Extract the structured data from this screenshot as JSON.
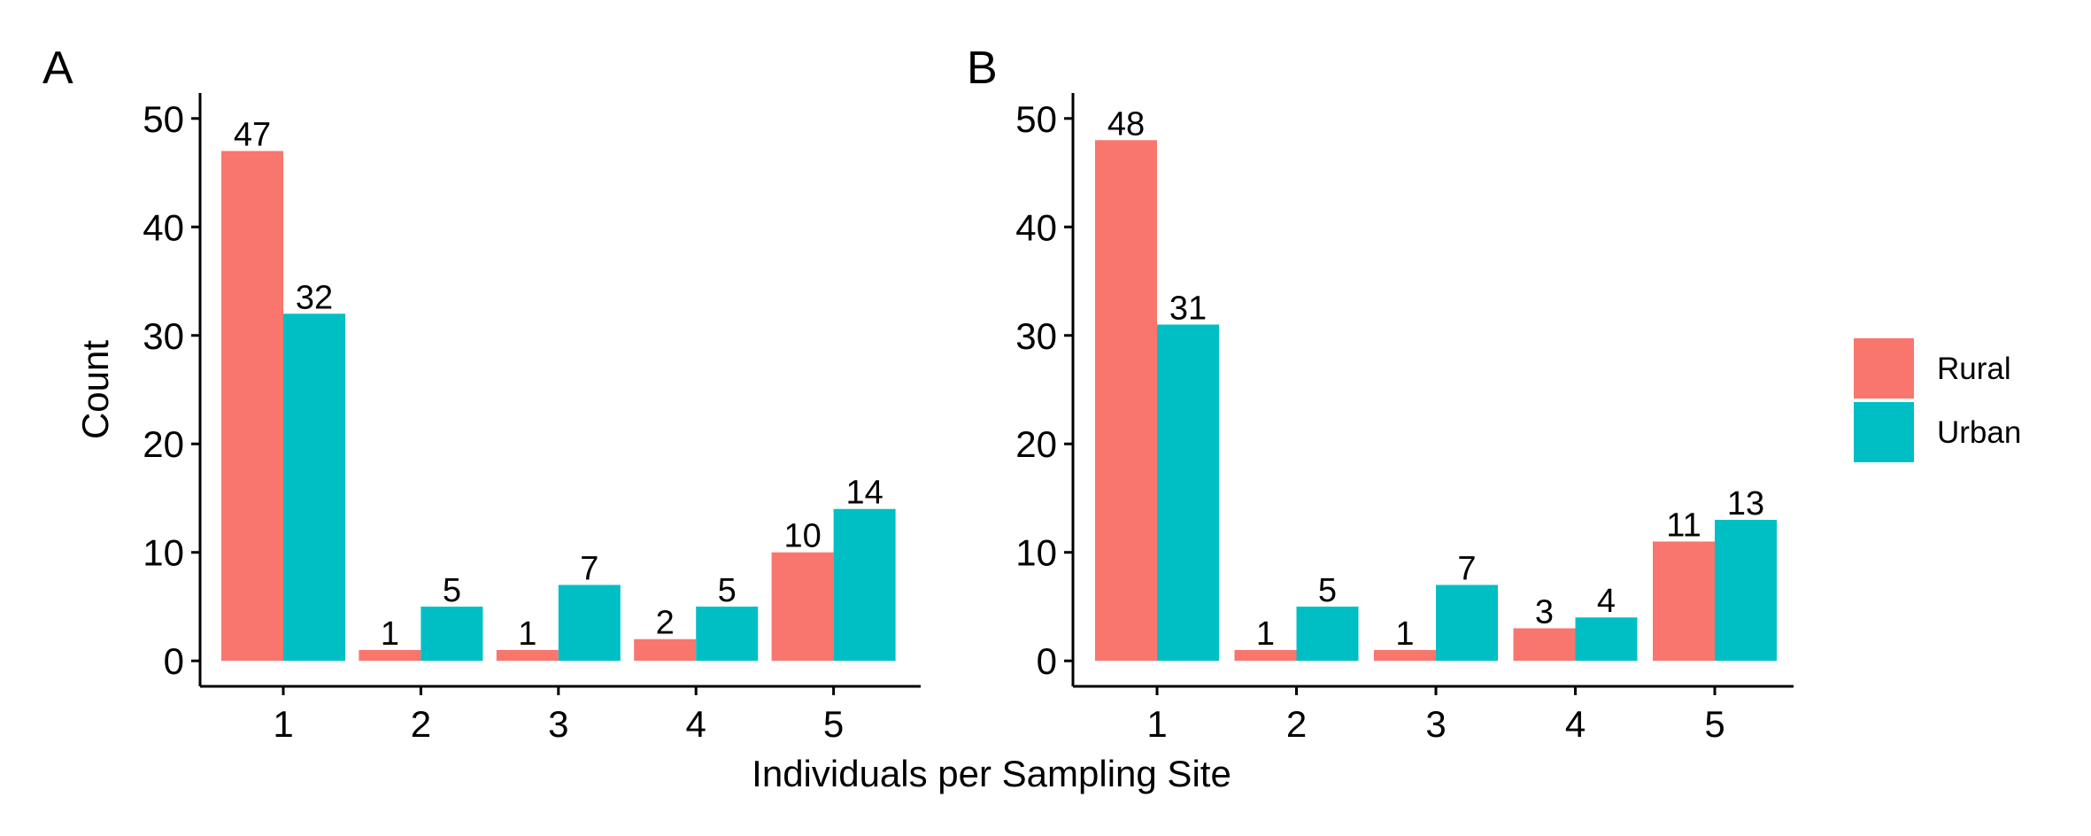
{
  "figure": {
    "xlabel": "Individuals per Sampling Site",
    "ylabel": "Count"
  },
  "legend": {
    "placement": "right",
    "items": [
      {
        "label": "Rural",
        "color": "#F8766D"
      },
      {
        "label": "Urban",
        "color": "#00BFC4"
      }
    ]
  },
  "chart_data": [
    {
      "type": "bar",
      "panel_label": "A",
      "categories": [
        "1",
        "2",
        "3",
        "4",
        "5"
      ],
      "series": [
        {
          "name": "Rural",
          "color": "#F8766D",
          "values": [
            47,
            1,
            1,
            2,
            10
          ]
        },
        {
          "name": "Urban",
          "color": "#00BFC4",
          "values": [
            32,
            5,
            7,
            5,
            14
          ]
        }
      ],
      "yticks": [
        0,
        10,
        20,
        30,
        40,
        50
      ],
      "ylim": [
        -2.35,
        52.35
      ],
      "grid": false
    },
    {
      "type": "bar",
      "panel_label": "B",
      "categories": [
        "1",
        "2",
        "3",
        "4",
        "5"
      ],
      "series": [
        {
          "name": "Rural",
          "color": "#F8766D",
          "values": [
            48,
            1,
            1,
            3,
            11
          ]
        },
        {
          "name": "Urban",
          "color": "#00BFC4",
          "values": [
            31,
            5,
            7,
            4,
            13
          ]
        }
      ],
      "yticks": [
        0,
        10,
        20,
        30,
        40,
        50
      ],
      "ylim": [
        -2.35,
        52.35
      ],
      "grid": false
    }
  ]
}
